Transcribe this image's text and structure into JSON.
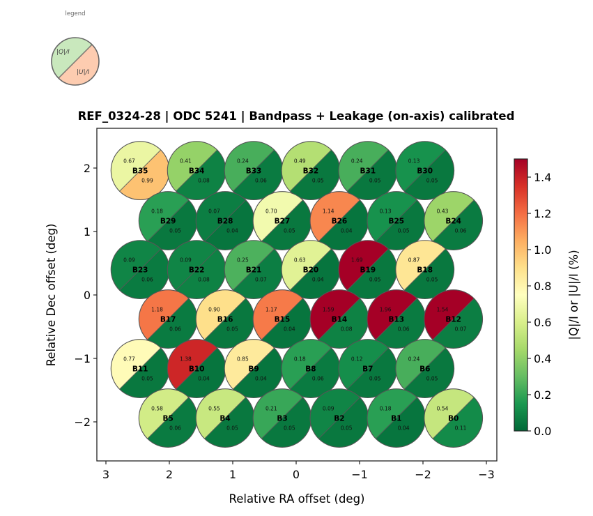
{
  "chart_data": {
    "type": "scatter",
    "title": "REF_0324-28  |  ODC 5241  |  Bandpass + Leakage (on-axis) calibrated",
    "xlabel": "Relative RA offset (deg)",
    "ylabel": "Relative Dec offset (deg)",
    "xlim": [
      3.15,
      -3.15
    ],
    "ylim": [
      -2.6,
      2.6
    ],
    "x_ticks": [
      3,
      2,
      1,
      0,
      -1,
      -2,
      -3
    ],
    "x_tick_labels": [
      "3",
      "2",
      "1",
      "0",
      "−1",
      "−2",
      "−3"
    ],
    "y_ticks": [
      2,
      1,
      0,
      -1,
      -2
    ],
    "y_tick_labels": [
      "2",
      "1",
      "0",
      "−1",
      "−2"
    ],
    "grid": false,
    "beam_radius_deg": 0.46,
    "colorbar": {
      "label": "|Q|/I  or  |U|/I  (%)",
      "colormap": "RdYlGn_r",
      "range": [
        0.0,
        1.5
      ],
      "ticks": [
        0.0,
        0.2,
        0.4,
        0.6,
        0.8,
        1.0,
        1.2,
        1.4
      ],
      "tick_labels": [
        "0.0",
        "0.2",
        "0.4",
        "0.6",
        "0.8",
        "1.0",
        "1.2",
        "1.4"
      ]
    },
    "legend": {
      "title": "legend",
      "placement": "top-left",
      "upper_label": "|Q|/I",
      "lower_label": "|U|/I",
      "upper_color": "#c9e8bd",
      "lower_color": "#fdccb0"
    },
    "beams": [
      {
        "name": "B35",
        "ra": 2.46,
        "dec": 1.96,
        "q": 0.67,
        "u": 0.99
      },
      {
        "name": "B34",
        "ra": 1.57,
        "dec": 1.96,
        "q": 0.41,
        "u": 0.08
      },
      {
        "name": "B33",
        "ra": 0.67,
        "dec": 1.96,
        "q": 0.24,
        "u": 0.06
      },
      {
        "name": "B32",
        "ra": -0.23,
        "dec": 1.96,
        "q": 0.49,
        "u": 0.05
      },
      {
        "name": "B31",
        "ra": -1.13,
        "dec": 1.96,
        "q": 0.24,
        "u": 0.05
      },
      {
        "name": "B30",
        "ra": -2.03,
        "dec": 1.96,
        "q": 0.13,
        "u": 0.05
      },
      {
        "name": "B29",
        "ra": 2.02,
        "dec": 1.17,
        "q": 0.18,
        "u": 0.05
      },
      {
        "name": "B28",
        "ra": 1.12,
        "dec": 1.17,
        "q": 0.07,
        "u": 0.04
      },
      {
        "name": "B27",
        "ra": 0.22,
        "dec": 1.17,
        "q": 0.7,
        "u": 0.05
      },
      {
        "name": "B26",
        "ra": -0.68,
        "dec": 1.17,
        "q": 1.14,
        "u": 0.04
      },
      {
        "name": "B25",
        "ra": -1.58,
        "dec": 1.17,
        "q": 0.13,
        "u": 0.05
      },
      {
        "name": "B24",
        "ra": -2.48,
        "dec": 1.17,
        "q": 0.43,
        "u": 0.06
      },
      {
        "name": "B23",
        "ra": 2.46,
        "dec": 0.4,
        "q": 0.09,
        "u": 0.06
      },
      {
        "name": "B22",
        "ra": 1.57,
        "dec": 0.4,
        "q": 0.09,
        "u": 0.08
      },
      {
        "name": "B21",
        "ra": 0.67,
        "dec": 0.4,
        "q": 0.25,
        "u": 0.07
      },
      {
        "name": "B20",
        "ra": -0.23,
        "dec": 0.4,
        "q": 0.63,
        "u": 0.04
      },
      {
        "name": "B19",
        "ra": -1.13,
        "dec": 0.4,
        "q": 1.69,
        "u": 0.05
      },
      {
        "name": "B18",
        "ra": -2.03,
        "dec": 0.4,
        "q": 0.87,
        "u": 0.05
      },
      {
        "name": "B17",
        "ra": 2.02,
        "dec": -0.38,
        "q": 1.18,
        "u": 0.06
      },
      {
        "name": "B16",
        "ra": 1.12,
        "dec": -0.38,
        "q": 0.9,
        "u": 0.05
      },
      {
        "name": "B15",
        "ra": 0.22,
        "dec": -0.38,
        "q": 1.17,
        "u": 0.04
      },
      {
        "name": "B14",
        "ra": -0.68,
        "dec": -0.38,
        "q": 1.59,
        "u": 0.08
      },
      {
        "name": "B13",
        "ra": -1.58,
        "dec": -0.38,
        "q": 1.96,
        "u": 0.06
      },
      {
        "name": "B12",
        "ra": -2.48,
        "dec": -0.38,
        "q": 1.54,
        "u": 0.07
      },
      {
        "name": "B11",
        "ra": 2.46,
        "dec": -1.16,
        "q": 0.77,
        "u": 0.05
      },
      {
        "name": "B10",
        "ra": 1.57,
        "dec": -1.16,
        "q": 1.38,
        "u": 0.04
      },
      {
        "name": "B9",
        "ra": 0.67,
        "dec": -1.16,
        "q": 0.85,
        "u": 0.04
      },
      {
        "name": "B8",
        "ra": -0.23,
        "dec": -1.16,
        "q": 0.18,
        "u": 0.06
      },
      {
        "name": "B7",
        "ra": -1.13,
        "dec": -1.16,
        "q": 0.12,
        "u": 0.05
      },
      {
        "name": "B6",
        "ra": -2.03,
        "dec": -1.16,
        "q": 0.24,
        "u": 0.05
      },
      {
        "name": "B5",
        "ra": 2.02,
        "dec": -1.94,
        "q": 0.58,
        "u": 0.06
      },
      {
        "name": "B4",
        "ra": 1.12,
        "dec": -1.94,
        "q": 0.55,
        "u": 0.05
      },
      {
        "name": "B3",
        "ra": 0.22,
        "dec": -1.94,
        "q": 0.21,
        "u": 0.05
      },
      {
        "name": "B2",
        "ra": -0.68,
        "dec": -1.94,
        "q": 0.09,
        "u": 0.05
      },
      {
        "name": "B1",
        "ra": -1.58,
        "dec": -1.94,
        "q": 0.18,
        "u": 0.04
      },
      {
        "name": "B0",
        "ra": -2.48,
        "dec": -1.94,
        "q": 0.54,
        "u": 0.11
      }
    ]
  }
}
